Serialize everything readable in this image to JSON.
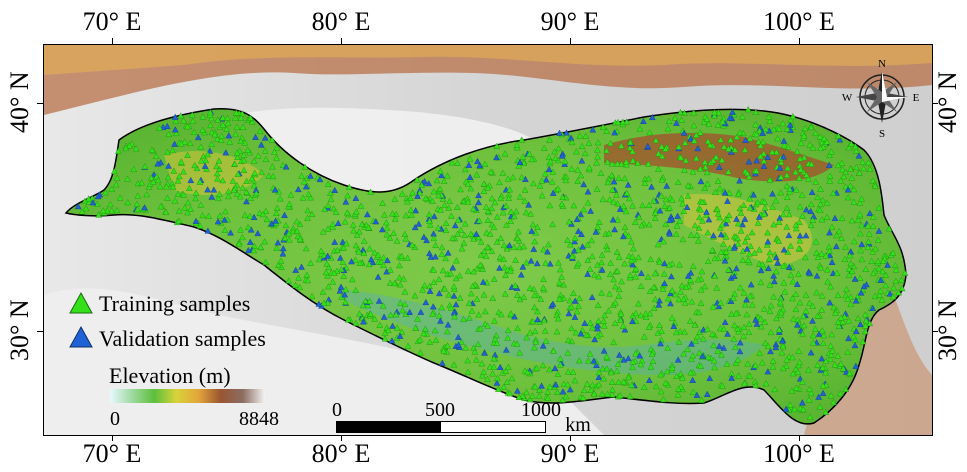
{
  "axes": {
    "top_labels": [
      "70° E",
      "80° E",
      "90° E",
      "100° E"
    ],
    "bottom_labels": [
      "70° E",
      "80° E",
      "90° E",
      "100° E"
    ],
    "left_labels": [
      "40° N",
      "30° N"
    ],
    "right_labels": [
      "40° N",
      "30° N"
    ]
  },
  "legend": {
    "training_label": "Training samples",
    "validation_label": "Validation samples",
    "training_color": "#33e01a",
    "validation_color": "#1f62d6"
  },
  "elevation_legend": {
    "title": "Elevation (m)",
    "min": "0",
    "max": "8848"
  },
  "scale_bar": {
    "labels": [
      "0",
      "500",
      "1000"
    ],
    "unit": "km"
  },
  "compass": {
    "n": "N",
    "s": "S",
    "e": "E",
    "w": "W"
  }
}
